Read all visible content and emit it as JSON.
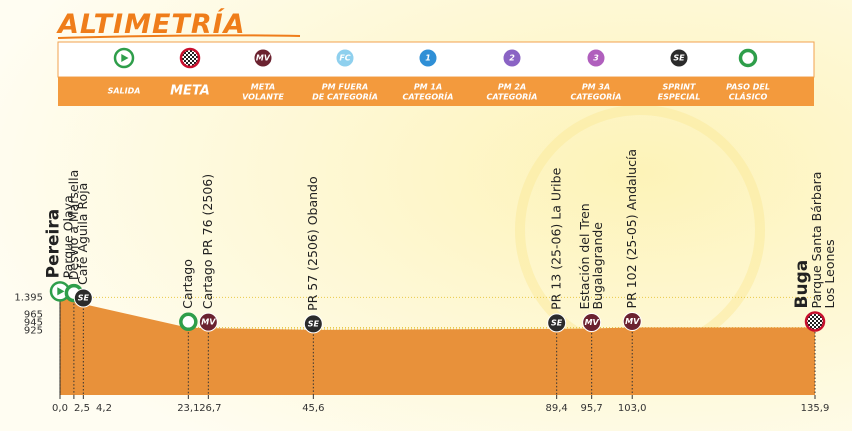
{
  "chart_data": {
    "type": "area",
    "title": "ALTIMETRÍA",
    "color": "#e8913a",
    "legend": [
      {
        "label": [
          "SALIDA"
        ],
        "icon": "play",
        "color": "#2e9e4a"
      },
      {
        "label": [
          "META"
        ],
        "icon": "checker",
        "color": "#c8102e"
      },
      {
        "label": [
          "META",
          "VOLANTE"
        ],
        "icon": "badge",
        "icon_text": "MV",
        "color": "#6b2230"
      },
      {
        "label": [
          "PM FUERA",
          "DE CATEGORÍA"
        ],
        "icon": "badge",
        "icon_text": "FC",
        "color": "#8fd0ee"
      },
      {
        "label": [
          "PM 1A",
          "CATEGORÍA"
        ],
        "icon": "badge",
        "icon_text": "1",
        "color": "#2f8fd6"
      },
      {
        "label": [
          "PM 2A",
          "CATEGORÍA"
        ],
        "icon": "badge",
        "icon_text": "2",
        "color": "#8a63c4"
      },
      {
        "label": [
          "PM 3A",
          "CATEGORÍA"
        ],
        "icon": "badge",
        "icon_text": "3",
        "color": "#b05fbd"
      },
      {
        "label": [
          "SPRINT",
          "ESPECIAL"
        ],
        "icon": "badge",
        "icon_text": "SE",
        "color": "#2b2b2b"
      },
      {
        "label": [
          "PASO DEL",
          "CLÁSICO"
        ],
        "icon": "ring",
        "color": "#2e9e4a"
      }
    ],
    "x": [
      0.0,
      2.5,
      4.2,
      23.1,
      26.7,
      45.6,
      89.4,
      95.7,
      103.0,
      135.9
    ],
    "values": [
      1395,
      1370,
      1300,
      960,
      955,
      930,
      945,
      950,
      965,
      965
    ],
    "points": [
      {
        "place": "Pereira",
        "lines": [
          "Parque Olaya"
        ],
        "marker": 0
      },
      {
        "lines": [
          "Desvío a Marsella"
        ],
        "marker": 8
      },
      {
        "lines": [
          "Café Aguila Roja"
        ],
        "marker": 7
      },
      {
        "lines": [
          "Cartago"
        ],
        "marker": 8
      },
      {
        "lines": [
          "Cartago PR 76 (2506)"
        ],
        "marker": 2
      },
      {
        "lines": [
          "PR 57 (2506) Obando"
        ],
        "marker": 7
      },
      {
        "lines": [
          "PR 13 (25-06) La Uribe"
        ],
        "marker": 7
      },
      {
        "lines": [
          "Estación del Tren",
          "Bugalagrande"
        ],
        "marker": 2
      },
      {
        "lines": [
          "PR 102 (25-05) Andalucía"
        ],
        "marker": 2
      },
      {
        "place": "Buga",
        "lines": [
          "Parque Santa Bárbara",
          "Los Leones"
        ],
        "marker": 1
      }
    ],
    "xlim": [
      0,
      135.9
    ],
    "xticks": [
      {
        "value": 0.0,
        "label": "0,0"
      },
      {
        "value": 2.5,
        "label": "2,5"
      },
      {
        "value": 4.2,
        "label": "4,2"
      },
      {
        "value": 23.1,
        "label": "23,1"
      },
      {
        "value": 26.7,
        "label": "26,7"
      },
      {
        "value": 45.6,
        "label": "45,6"
      },
      {
        "value": 89.4,
        "label": "89,4"
      },
      {
        "value": 95.7,
        "label": "95,7"
      },
      {
        "value": 103.0,
        "label": "103,0"
      },
      {
        "value": 135.9,
        "label": "135,9"
      }
    ],
    "ylim": [
      0,
      1400
    ],
    "yticks": [
      {
        "value": 1395,
        "label": "1.395"
      },
      965,
      945,
      925
    ]
  }
}
